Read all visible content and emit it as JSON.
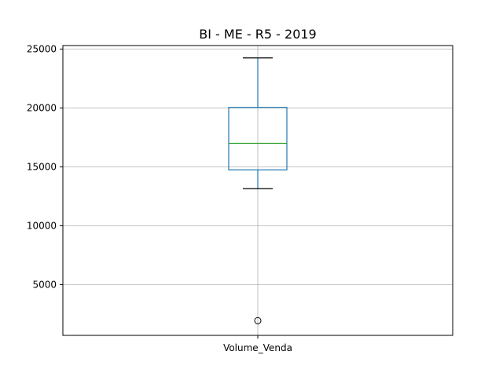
{
  "chart_data": {
    "type": "box",
    "title": "BI - ME - R5 - 2019",
    "categories": [
      "Volume_Venda"
    ],
    "ylim": [
      700,
      25300
    ],
    "yticks": [
      5000,
      10000,
      15000,
      20000,
      25000
    ],
    "grid": true,
    "boxes": [
      {
        "label": "Volume_Venda",
        "whisker_low": 13150,
        "q1": 14750,
        "median": 17000,
        "q3": 20050,
        "whisker_high": 24250,
        "outliers": [
          1950
        ]
      }
    ],
    "colors": {
      "box": "#1f77b4",
      "median": "#2ca02c",
      "caps": "#000000",
      "outlier": "#000000",
      "grid": "#b0b0b0"
    }
  }
}
